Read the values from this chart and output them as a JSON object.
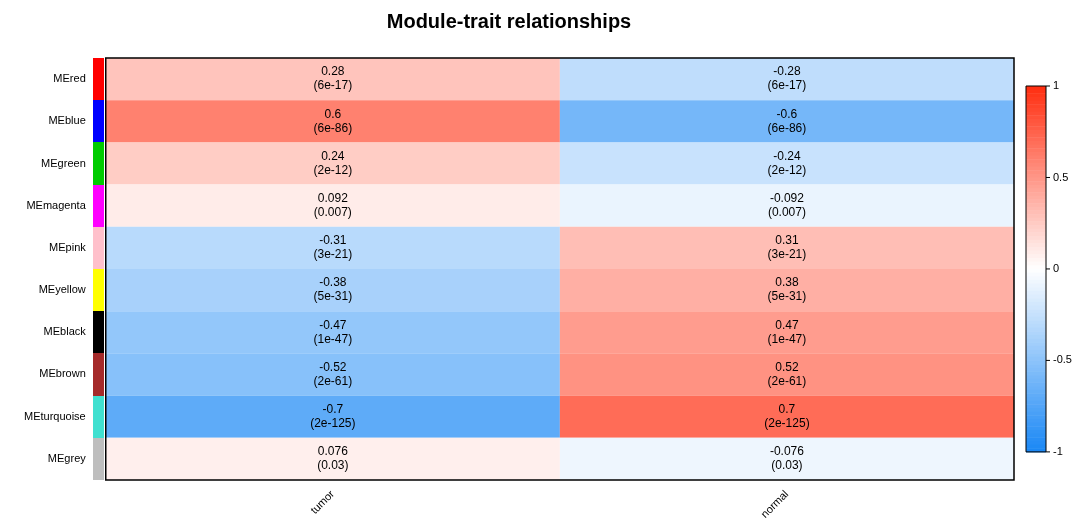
{
  "chart_data": {
    "type": "heatmap",
    "title": "Module-trait relationships",
    "categories": [
      "tumor",
      "normal"
    ],
    "y_categories": [
      "MEred",
      "MEblue",
      "MEgreen",
      "MEmagenta",
      "MEpink",
      "MEyellow",
      "MEblack",
      "MEbrown",
      "MEturquoise",
      "MEgrey"
    ],
    "cells": [
      [
        0.28,
        -0.28
      ],
      [
        0.6,
        -0.6
      ],
      [
        0.24,
        -0.24
      ],
      [
        0.092,
        -0.092
      ],
      [
        -0.31,
        0.31
      ],
      [
        -0.38,
        0.38
      ],
      [
        -0.47,
        0.47
      ],
      [
        -0.52,
        0.52
      ],
      [
        -0.7,
        0.7
      ],
      [
        0.076,
        -0.076
      ]
    ],
    "cell_labels": [
      [
        "0.28\n(6e-17)",
        "-0.28\n(6e-17)"
      ],
      [
        "0.6\n(6e-86)",
        "-0.6\n(6e-86)"
      ],
      [
        "0.24\n(2e-12)",
        "-0.24\n(2e-12)"
      ],
      [
        "0.092\n(0.007)",
        "-0.092\n(0.007)"
      ],
      [
        "-0.31\n(3e-21)",
        "0.31\n(3e-21)"
      ],
      [
        "-0.38\n(5e-31)",
        "0.38\n(5e-31)"
      ],
      [
        "-0.47\n(1e-47)",
        "0.47\n(1e-47)"
      ],
      [
        "-0.52\n(2e-61)",
        "0.52\n(2e-61)"
      ],
      [
        "-0.7\n(2e-125)",
        "0.7\n(2e-125)"
      ],
      [
        "0.076\n(0.03)",
        "-0.076\n(0.03)"
      ]
    ],
    "clim": [
      -1,
      1
    ],
    "cticks": [
      -1,
      -0.5,
      0,
      0.5,
      1
    ]
  }
}
